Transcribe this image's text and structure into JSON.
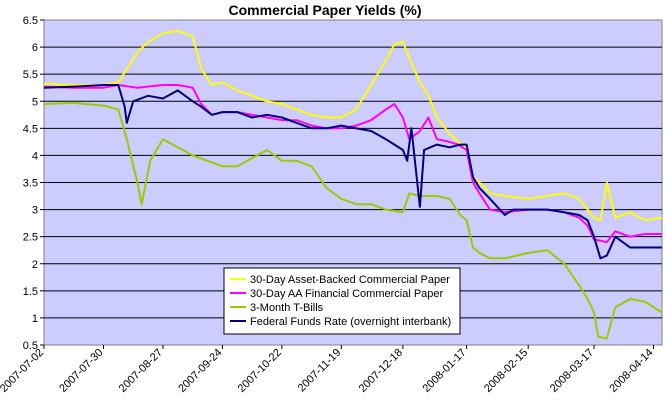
{
  "chart_data": {
    "type": "line",
    "title": "Commercial Paper Yields (%)",
    "xlabel": "",
    "ylabel": "",
    "ylim": [
      0.5,
      6.5
    ],
    "yticks": [
      0.5,
      1,
      1.5,
      2,
      2.5,
      3,
      3.5,
      4,
      4.5,
      5,
      5.5,
      6,
      6.5
    ],
    "ytick_labels": [
      "0.5",
      "1",
      "1.5",
      "2",
      "2.5",
      "3",
      "3.5",
      "4",
      "4.5",
      "5",
      "5.5",
      "6",
      "6.5"
    ],
    "xlim": [
      "2007-07-02",
      "2008-04-18"
    ],
    "xticks": [
      "2007-07-02",
      "2007-07-30",
      "2007-08-27",
      "2007-09-24",
      "2007-10-22",
      "2007-11-19",
      "2007-12-18",
      "2008-01-17",
      "2008-02-15",
      "2008-03-17",
      "2008-04-14"
    ],
    "grid": true,
    "plot_background": "#ccccff",
    "legend_position": "lower-left",
    "series": [
      {
        "name": "30-Day Asset-Backed Commercial Paper",
        "color": "#ffff00",
        "points": [
          [
            "2007-07-02",
            5.32
          ],
          [
            "2007-07-16",
            5.3
          ],
          [
            "2007-07-30",
            5.3
          ],
          [
            "2007-08-06",
            5.35
          ],
          [
            "2007-08-10",
            5.6
          ],
          [
            "2007-08-15",
            5.9
          ],
          [
            "2007-08-20",
            6.1
          ],
          [
            "2007-08-27",
            6.25
          ],
          [
            "2007-09-03",
            6.3
          ],
          [
            "2007-09-10",
            6.2
          ],
          [
            "2007-09-14",
            5.6
          ],
          [
            "2007-09-19",
            5.3
          ],
          [
            "2007-09-24",
            5.35
          ],
          [
            "2007-10-01",
            5.2
          ],
          [
            "2007-10-08",
            5.1
          ],
          [
            "2007-10-15",
            5.0
          ],
          [
            "2007-10-22",
            4.95
          ],
          [
            "2007-10-29",
            4.85
          ],
          [
            "2007-11-05",
            4.75
          ],
          [
            "2007-11-12",
            4.7
          ],
          [
            "2007-11-19",
            4.7
          ],
          [
            "2007-11-26",
            4.85
          ],
          [
            "2007-12-03",
            5.3
          ],
          [
            "2007-12-10",
            5.75
          ],
          [
            "2007-12-14",
            6.05
          ],
          [
            "2007-12-18",
            6.1
          ],
          [
            "2007-12-21",
            5.8
          ],
          [
            "2007-12-26",
            5.35
          ],
          [
            "2007-12-30",
            5.1
          ],
          [
            "2008-01-03",
            4.7
          ],
          [
            "2008-01-09",
            4.4
          ],
          [
            "2008-01-13",
            4.25
          ],
          [
            "2008-01-17",
            4.15
          ],
          [
            "2008-01-20",
            3.6
          ],
          [
            "2008-01-23",
            3.5
          ],
          [
            "2008-01-28",
            3.3
          ],
          [
            "2008-02-04",
            3.25
          ],
          [
            "2008-02-15",
            3.2
          ],
          [
            "2008-02-24",
            3.25
          ],
          [
            "2008-03-03",
            3.3
          ],
          [
            "2008-03-10",
            3.2
          ],
          [
            "2008-03-14",
            3.0
          ],
          [
            "2008-03-17",
            2.85
          ],
          [
            "2008-03-20",
            2.8
          ],
          [
            "2008-03-23",
            3.5
          ],
          [
            "2008-03-27",
            2.85
          ],
          [
            "2008-04-03",
            2.95
          ],
          [
            "2008-04-10",
            2.8
          ],
          [
            "2008-04-18",
            2.85
          ]
        ]
      },
      {
        "name": "30-Day AA Financial Commercial Paper",
        "color": "#ff00ff",
        "points": [
          [
            "2007-07-02",
            5.27
          ],
          [
            "2007-07-16",
            5.25
          ],
          [
            "2007-07-30",
            5.25
          ],
          [
            "2007-08-06",
            5.3
          ],
          [
            "2007-08-15",
            5.25
          ],
          [
            "2007-08-27",
            5.3
          ],
          [
            "2007-09-03",
            5.3
          ],
          [
            "2007-09-10",
            5.25
          ],
          [
            "2007-09-14",
            4.95
          ],
          [
            "2007-09-19",
            4.75
          ],
          [
            "2007-09-24",
            4.8
          ],
          [
            "2007-10-01",
            4.8
          ],
          [
            "2007-10-08",
            4.75
          ],
          [
            "2007-10-15",
            4.7
          ],
          [
            "2007-10-22",
            4.65
          ],
          [
            "2007-10-29",
            4.65
          ],
          [
            "2007-11-05",
            4.55
          ],
          [
            "2007-11-12",
            4.5
          ],
          [
            "2007-11-19",
            4.5
          ],
          [
            "2007-11-26",
            4.55
          ],
          [
            "2007-12-03",
            4.65
          ],
          [
            "2007-12-10",
            4.85
          ],
          [
            "2007-12-14",
            4.95
          ],
          [
            "2007-12-18",
            4.7
          ],
          [
            "2007-12-21",
            4.3
          ],
          [
            "2007-12-26",
            4.45
          ],
          [
            "2007-12-30",
            4.7
          ],
          [
            "2008-01-03",
            4.3
          ],
          [
            "2008-01-09",
            4.25
          ],
          [
            "2008-01-13",
            4.2
          ],
          [
            "2008-01-17",
            4.1
          ],
          [
            "2008-01-20",
            3.5
          ],
          [
            "2008-01-23",
            3.3
          ],
          [
            "2008-01-28",
            3.0
          ],
          [
            "2008-02-04",
            2.95
          ],
          [
            "2008-02-15",
            3.0
          ],
          [
            "2008-02-24",
            3.0
          ],
          [
            "2008-03-03",
            2.95
          ],
          [
            "2008-03-10",
            2.85
          ],
          [
            "2008-03-14",
            2.7
          ],
          [
            "2008-03-17",
            2.45
          ],
          [
            "2008-03-23",
            2.4
          ],
          [
            "2008-03-27",
            2.6
          ],
          [
            "2008-04-03",
            2.5
          ],
          [
            "2008-04-10",
            2.55
          ],
          [
            "2008-04-18",
            2.55
          ]
        ]
      },
      {
        "name": "3-Month T-Bills",
        "color": "#99cc00",
        "points": [
          [
            "2007-07-02",
            4.95
          ],
          [
            "2007-07-16",
            4.97
          ],
          [
            "2007-07-30",
            4.92
          ],
          [
            "2007-08-06",
            4.85
          ],
          [
            "2007-08-10",
            4.3
          ],
          [
            "2007-08-15",
            3.5
          ],
          [
            "2007-08-17",
            3.1
          ],
          [
            "2007-08-21",
            3.9
          ],
          [
            "2007-08-27",
            4.3
          ],
          [
            "2007-09-03",
            4.15
          ],
          [
            "2007-09-10",
            4.0
          ],
          [
            "2007-09-17",
            3.9
          ],
          [
            "2007-09-24",
            3.8
          ],
          [
            "2007-10-01",
            3.8
          ],
          [
            "2007-10-08",
            3.95
          ],
          [
            "2007-10-15",
            4.1
          ],
          [
            "2007-10-22",
            3.9
          ],
          [
            "2007-10-29",
            3.9
          ],
          [
            "2007-11-05",
            3.8
          ],
          [
            "2007-11-12",
            3.4
          ],
          [
            "2007-11-19",
            3.2
          ],
          [
            "2007-11-26",
            3.1
          ],
          [
            "2007-12-03",
            3.1
          ],
          [
            "2007-12-10",
            3.0
          ],
          [
            "2007-12-18",
            2.95
          ],
          [
            "2007-12-21",
            3.3
          ],
          [
            "2007-12-26",
            3.25
          ],
          [
            "2008-01-03",
            3.25
          ],
          [
            "2008-01-09",
            3.2
          ],
          [
            "2008-01-14",
            2.9
          ],
          [
            "2008-01-17",
            2.8
          ],
          [
            "2008-01-20",
            2.3
          ],
          [
            "2008-01-23",
            2.2
          ],
          [
            "2008-01-28",
            2.1
          ],
          [
            "2008-02-04",
            2.1
          ],
          [
            "2008-02-15",
            2.2
          ],
          [
            "2008-02-24",
            2.25
          ],
          [
            "2008-03-03",
            2.0
          ],
          [
            "2008-03-10",
            1.6
          ],
          [
            "2008-03-14",
            1.35
          ],
          [
            "2008-03-17",
            1.1
          ],
          [
            "2008-03-19",
            0.65
          ],
          [
            "2008-03-23",
            0.62
          ],
          [
            "2008-03-27",
            1.2
          ],
          [
            "2008-04-03",
            1.35
          ],
          [
            "2008-04-10",
            1.3
          ],
          [
            "2008-04-14",
            1.2
          ],
          [
            "2008-04-18",
            1.1
          ]
        ]
      },
      {
        "name": "Federal Funds Rate (overnight interbank)",
        "color": "#000080",
        "points": [
          [
            "2007-07-02",
            5.25
          ],
          [
            "2007-07-16",
            5.27
          ],
          [
            "2007-07-30",
            5.3
          ],
          [
            "2007-08-06",
            5.3
          ],
          [
            "2007-08-09",
            4.9
          ],
          [
            "2007-08-10",
            4.6
          ],
          [
            "2007-08-13",
            5.0
          ],
          [
            "2007-08-20",
            5.1
          ],
          [
            "2007-08-27",
            5.05
          ],
          [
            "2007-09-03",
            5.2
          ],
          [
            "2007-09-10",
            5.0
          ],
          [
            "2007-09-14",
            4.9
          ],
          [
            "2007-09-19",
            4.75
          ],
          [
            "2007-09-24",
            4.8
          ],
          [
            "2007-10-01",
            4.8
          ],
          [
            "2007-10-08",
            4.7
          ],
          [
            "2007-10-15",
            4.75
          ],
          [
            "2007-10-22",
            4.7
          ],
          [
            "2007-10-29",
            4.6
          ],
          [
            "2007-11-05",
            4.5
          ],
          [
            "2007-11-12",
            4.5
          ],
          [
            "2007-11-19",
            4.55
          ],
          [
            "2007-11-26",
            4.5
          ],
          [
            "2007-12-03",
            4.45
          ],
          [
            "2007-12-10",
            4.3
          ],
          [
            "2007-12-14",
            4.2
          ],
          [
            "2007-12-18",
            4.1
          ],
          [
            "2007-12-20",
            3.9
          ],
          [
            "2007-12-22",
            4.5
          ],
          [
            "2007-12-26",
            3.05
          ],
          [
            "2007-12-28",
            4.1
          ],
          [
            "2008-01-03",
            4.2
          ],
          [
            "2008-01-09",
            4.15
          ],
          [
            "2008-01-14",
            4.2
          ],
          [
            "2008-01-17",
            4.2
          ],
          [
            "2008-01-20",
            3.6
          ],
          [
            "2008-01-23",
            3.4
          ],
          [
            "2008-01-28",
            3.2
          ],
          [
            "2008-02-04",
            2.9
          ],
          [
            "2008-02-08",
            3.0
          ],
          [
            "2008-02-15",
            3.0
          ],
          [
            "2008-02-24",
            3.0
          ],
          [
            "2008-03-03",
            2.95
          ],
          [
            "2008-03-10",
            2.9
          ],
          [
            "2008-03-14",
            2.8
          ],
          [
            "2008-03-17",
            2.5
          ],
          [
            "2008-03-20",
            2.1
          ],
          [
            "2008-03-23",
            2.15
          ],
          [
            "2008-03-27",
            2.5
          ],
          [
            "2008-04-03",
            2.3
          ],
          [
            "2008-04-10",
            2.3
          ],
          [
            "2008-04-18",
            2.3
          ]
        ]
      }
    ]
  }
}
